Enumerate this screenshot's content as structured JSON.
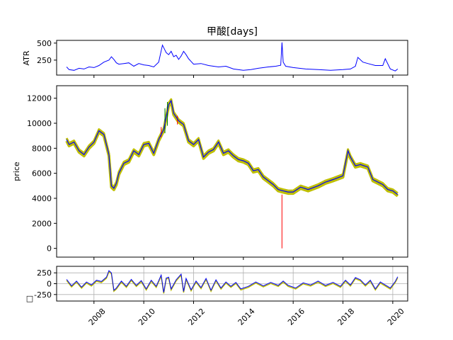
{
  "title": "甲酸[days]",
  "colors": {
    "atr_line": "#0000ff",
    "close_line": "#0000ff",
    "band": "#bfbf00",
    "up": "#008000",
    "down": "#ff0000",
    "grid": "#b0b0b0"
  },
  "chart_data": [
    {
      "type": "line",
      "panel": "atr",
      "ylabel": "ATR",
      "title": "甲酸[days]",
      "xlim": [
        2006.5,
        2020.6
      ],
      "ylim": [
        30,
        540
      ],
      "yticks": [
        250,
        500
      ],
      "grid": false,
      "series": [
        {
          "x": [
            2006.9,
            2007.0,
            2007.2,
            2007.4,
            2007.6,
            2007.8,
            2008.0,
            2008.2,
            2008.4,
            2008.6,
            2008.7,
            2008.8,
            2008.9,
            2009.0,
            2009.2,
            2009.4,
            2009.6,
            2009.8,
            2010.0,
            2010.2,
            2010.4,
            2010.6,
            2010.75,
            2010.9,
            2011.0,
            2011.1,
            2011.2,
            2011.3,
            2011.4,
            2011.5,
            2011.6,
            2011.7,
            2011.8,
            2011.9,
            2012.0,
            2012.3,
            2012.6,
            2013.0,
            2013.3,
            2013.6,
            2014.0,
            2014.3,
            2014.6,
            2015.0,
            2015.3,
            2015.5,
            2015.55,
            2015.6,
            2015.7,
            2016.0,
            2016.5,
            2017.0,
            2017.5,
            2018.0,
            2018.3,
            2018.5,
            2018.6,
            2018.8,
            2019.0,
            2019.3,
            2019.6,
            2019.7,
            2019.9,
            2020.1,
            2020.2
          ],
          "values": [
            150,
            110,
            100,
            130,
            120,
            150,
            140,
            170,
            220,
            250,
            300,
            260,
            210,
            190,
            200,
            210,
            160,
            200,
            180,
            170,
            150,
            220,
            470,
            360,
            330,
            380,
            300,
            320,
            260,
            310,
            380,
            330,
            270,
            230,
            190,
            200,
            170,
            150,
            160,
            120,
            100,
            110,
            130,
            150,
            160,
            175,
            510,
            220,
            160,
            140,
            120,
            110,
            100,
            110,
            120,
            160,
            290,
            220,
            200,
            170,
            170,
            270,
            120,
            90,
            120
          ]
        }
      ]
    },
    {
      "type": "line",
      "panel": "price",
      "ylabel": "price",
      "xlim": [
        2006.5,
        2020.6
      ],
      "ylim": [
        -700,
        13000
      ],
      "yticks": [
        0,
        2000,
        4000,
        6000,
        8000,
        10000,
        12000
      ],
      "grid": false,
      "series": [
        {
          "x": [
            2006.9,
            2007.0,
            2007.2,
            2007.4,
            2007.6,
            2007.8,
            2008.0,
            2008.2,
            2008.4,
            2008.6,
            2008.7,
            2008.8,
            2008.9,
            2009.0,
            2009.2,
            2009.4,
            2009.6,
            2009.8,
            2010.0,
            2010.2,
            2010.4,
            2010.6,
            2010.8,
            2010.9,
            2011.0,
            2011.1,
            2011.2,
            2011.4,
            2011.6,
            2011.8,
            2012.0,
            2012.2,
            2012.4,
            2012.6,
            2012.8,
            2013.0,
            2013.2,
            2013.4,
            2013.6,
            2013.8,
            2014.0,
            2014.2,
            2014.4,
            2014.6,
            2014.8,
            2015.0,
            2015.2,
            2015.4,
            2015.6,
            2015.8,
            2016.0,
            2016.3,
            2016.6,
            2017.0,
            2017.3,
            2017.6,
            2018.0,
            2018.2,
            2018.3,
            2018.5,
            2018.7,
            2019.0,
            2019.2,
            2019.4,
            2019.6,
            2019.8,
            2020.0,
            2020.2
          ],
          "values": [
            8700,
            8300,
            8500,
            7800,
            7500,
            8100,
            8500,
            9400,
            9100,
            7500,
            5000,
            4800,
            5200,
            6000,
            6800,
            7000,
            7800,
            7500,
            8300,
            8400,
            7600,
            8700,
            9500,
            10500,
            11500,
            11800,
            10800,
            10200,
            9900,
            8600,
            8300,
            8700,
            7300,
            7700,
            7900,
            8500,
            7600,
            7800,
            7400,
            7100,
            7000,
            6800,
            6200,
            6300,
            5700,
            5400,
            5100,
            4700,
            4600,
            4500,
            4500,
            4900,
            4700,
            5000,
            5300,
            5500,
            5800,
            7800,
            7300,
            6600,
            6700,
            6500,
            5500,
            5300,
            5100,
            4700,
            4600,
            4300
          ]
        }
      ],
      "annotations": [
        {
          "type": "down-spike",
          "x": 2015.55,
          "value_low": 0,
          "value_high": 4300
        }
      ]
    },
    {
      "type": "line",
      "panel": "oscillator",
      "ylabel": "□",
      "xlim": [
        2006.5,
        2020.6
      ],
      "ylim": [
        -400,
        400
      ],
      "yticks": [
        -250,
        0,
        250
      ],
      "grid": true,
      "xticks": [
        "2008",
        "2010",
        "2012",
        "2014",
        "2016",
        "2018",
        "2020"
      ],
      "series": [
        {
          "x": [
            2006.9,
            2007.1,
            2007.3,
            2007.5,
            2007.7,
            2007.9,
            2008.1,
            2008.3,
            2008.5,
            2008.6,
            2008.7,
            2008.8,
            2008.9,
            2009.1,
            2009.3,
            2009.5,
            2009.7,
            2009.9,
            2010.1,
            2010.3,
            2010.5,
            2010.7,
            2010.8,
            2010.9,
            2011.0,
            2011.1,
            2011.3,
            2011.5,
            2011.6,
            2011.7,
            2011.9,
            2012.1,
            2012.3,
            2012.5,
            2012.7,
            2012.9,
            2013.1,
            2013.3,
            2013.5,
            2013.7,
            2013.9,
            2014.2,
            2014.5,
            2014.8,
            2015.1,
            2015.4,
            2015.6,
            2015.8,
            2016.1,
            2016.4,
            2016.7,
            2017.0,
            2017.3,
            2017.6,
            2017.9,
            2018.1,
            2018.3,
            2018.5,
            2018.7,
            2018.9,
            2019.1,
            2019.3,
            2019.5,
            2019.7,
            2019.9,
            2020.1,
            2020.2
          ],
          "values": [
            100,
            -50,
            60,
            -80,
            40,
            -30,
            80,
            50,
            150,
            300,
            250,
            -150,
            -100,
            60,
            -60,
            100,
            -40,
            70,
            -120,
            80,
            -60,
            200,
            -200,
            130,
            150,
            -120,
            90,
            220,
            -180,
            120,
            -140,
            60,
            -90,
            120,
            -150,
            90,
            -100,
            40,
            -60,
            30,
            -120,
            -60,
            40,
            -50,
            30,
            -40,
            60,
            -40,
            -100,
            20,
            -30,
            60,
            -40,
            30,
            -60,
            80,
            -30,
            140,
            90,
            -30,
            80,
            -120,
            40,
            -30,
            -100,
            50,
            160
          ]
        }
      ]
    }
  ]
}
